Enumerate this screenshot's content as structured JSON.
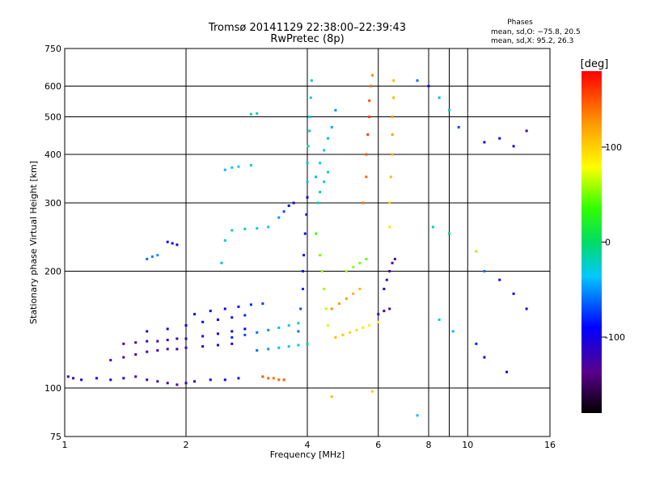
{
  "chart_data": {
    "type": "scatter",
    "title": "Tromsø 20141129 22:38:00–22:39:43",
    "subtitle": "RwPretec (8p)",
    "xlabel": "Frequency [MHz]",
    "ylabel": "Stationary phase Virtual Height [km]",
    "x_scale": "log",
    "y_scale": "log",
    "xlim": [
      1,
      16
    ],
    "ylim": [
      75,
      750
    ],
    "x_ticks": [
      1,
      2,
      4,
      6,
      8,
      10,
      16
    ],
    "y_ticks": [
      75,
      100,
      200,
      300,
      400,
      500,
      600,
      750
    ],
    "x_grid": [
      2,
      4,
      6,
      8,
      9,
      10
    ],
    "y_grid": [
      100,
      200,
      300,
      400,
      500,
      600
    ],
    "grid": true,
    "stats": {
      "heading": "Phases",
      "line_o": "mean, sd,O: −75.8, 20.5",
      "line_x": "mean, sd,X:  95.2, 26.3"
    },
    "colorbar": {
      "label": "[deg]",
      "min": -180,
      "max": 180,
      "ticks": [
        100,
        0,
        -100
      ]
    },
    "series": [
      {
        "points": [
          [
            1.02,
            107,
            -120
          ],
          [
            1.05,
            106,
            -115
          ],
          [
            1.1,
            105,
            -110
          ],
          [
            1.2,
            106,
            -100
          ],
          [
            1.3,
            105,
            -105
          ],
          [
            1.4,
            106,
            -110
          ],
          [
            1.5,
            107,
            -120
          ],
          [
            1.6,
            105,
            -125
          ],
          [
            1.7,
            104,
            -125
          ],
          [
            1.8,
            103,
            -120
          ],
          [
            1.9,
            102,
            -118
          ],
          [
            2.0,
            103,
            -115
          ],
          [
            2.1,
            104,
            -110
          ],
          [
            2.3,
            105,
            -100
          ],
          [
            2.5,
            105,
            -90
          ],
          [
            2.7,
            106,
            -85
          ],
          [
            1.3,
            118,
            -130
          ],
          [
            1.4,
            120,
            -135
          ],
          [
            1.5,
            122,
            -130
          ],
          [
            1.6,
            124,
            -128
          ],
          [
            1.7,
            125,
            -125
          ],
          [
            1.8,
            126,
            -130
          ],
          [
            1.9,
            126,
            -125
          ],
          [
            2.0,
            127,
            -120
          ],
          [
            2.2,
            128,
            -115
          ],
          [
            2.4,
            129,
            -110
          ],
          [
            2.6,
            130,
            -105
          ],
          [
            1.4,
            130,
            -130
          ],
          [
            1.5,
            131,
            -130
          ],
          [
            1.6,
            132,
            -125
          ],
          [
            1.7,
            132,
            -128
          ],
          [
            1.8,
            133,
            -122
          ],
          [
            1.9,
            134,
            -118
          ],
          [
            2.0,
            134,
            -112
          ],
          [
            2.2,
            136,
            -108
          ],
          [
            2.4,
            138,
            -104
          ],
          [
            2.6,
            140,
            -100
          ],
          [
            2.8,
            142,
            -95
          ],
          [
            1.6,
            140,
            -110
          ],
          [
            1.8,
            142,
            -105
          ],
          [
            2.0,
            145,
            -100
          ],
          [
            2.2,
            148,
            -95
          ],
          [
            2.4,
            150,
            -90
          ],
          [
            2.6,
            152,
            -85
          ],
          [
            2.8,
            154,
            -80
          ],
          [
            2.1,
            155,
            -100
          ],
          [
            2.3,
            158,
            -95
          ],
          [
            2.5,
            160,
            -90
          ],
          [
            2.7,
            162,
            -85
          ],
          [
            2.9,
            164,
            -80
          ],
          [
            3.1,
            165,
            -75
          ],
          [
            2.6,
            135,
            -80
          ],
          [
            2.8,
            137,
            -70
          ],
          [
            3.0,
            139,
            -60
          ],
          [
            3.2,
            141,
            -50
          ],
          [
            3.4,
            143,
            -40
          ],
          [
            3.6,
            145,
            -30
          ],
          [
            3.8,
            147,
            -20
          ],
          [
            3.0,
            125,
            -60
          ],
          [
            3.2,
            126,
            -50
          ],
          [
            3.4,
            127,
            -40
          ],
          [
            3.6,
            128,
            -30
          ],
          [
            3.8,
            129,
            -20
          ],
          [
            4.0,
            130,
            -10
          ],
          [
            1.6,
            215,
            -60
          ],
          [
            1.65,
            218,
            -55
          ],
          [
            1.7,
            220,
            -50
          ],
          [
            1.8,
            238,
            -90
          ],
          [
            1.85,
            236,
            -95
          ],
          [
            1.9,
            234,
            -100
          ],
          [
            2.45,
            210,
            -40
          ],
          [
            2.5,
            240,
            -30
          ],
          [
            2.6,
            255,
            -20
          ],
          [
            2.8,
            257,
            -25
          ],
          [
            3.0,
            258,
            -30
          ],
          [
            3.2,
            260,
            -35
          ],
          [
            3.4,
            275,
            -50
          ],
          [
            3.5,
            285,
            -70
          ],
          [
            3.6,
            295,
            -90
          ],
          [
            3.7,
            300,
            -100
          ],
          [
            2.5,
            365,
            -40
          ],
          [
            2.6,
            370,
            -35
          ],
          [
            2.7,
            372,
            -30
          ],
          [
            2.9,
            375,
            -25
          ],
          [
            2.9,
            508,
            -10
          ],
          [
            3.0,
            510,
            -15
          ],
          [
            3.8,
            140,
            -60
          ],
          [
            3.85,
            160,
            -70
          ],
          [
            3.9,
            180,
            -80
          ],
          [
            3.9,
            200,
            -85
          ],
          [
            3.92,
            220,
            -90
          ],
          [
            3.95,
            250,
            -95
          ],
          [
            3.98,
            280,
            -100
          ],
          [
            4.0,
            310,
            -100
          ],
          [
            4.0,
            340,
            -30
          ],
          [
            4.0,
            380,
            -20
          ],
          [
            4.02,
            420,
            -10
          ],
          [
            4.05,
            460,
            -20
          ],
          [
            4.05,
            500,
            -30
          ],
          [
            4.08,
            560,
            -25
          ],
          [
            4.1,
            620,
            -20
          ],
          [
            4.2,
            350,
            -40
          ],
          [
            4.3,
            380,
            -30
          ],
          [
            4.4,
            410,
            -35
          ],
          [
            4.5,
            440,
            -40
          ],
          [
            4.6,
            470,
            -45
          ],
          [
            4.7,
            520,
            -50
          ],
          [
            4.25,
            300,
            -20
          ],
          [
            4.3,
            320,
            -10
          ],
          [
            4.4,
            340,
            -25
          ],
          [
            4.5,
            360,
            -35
          ],
          [
            4.2,
            250,
            40
          ],
          [
            4.3,
            220,
            50
          ],
          [
            4.35,
            200,
            55
          ],
          [
            4.4,
            180,
            60
          ],
          [
            4.45,
            160,
            65
          ],
          [
            4.5,
            145,
            70
          ],
          [
            4.7,
            135,
            110
          ],
          [
            4.9,
            137,
            105
          ],
          [
            5.1,
            139,
            100
          ],
          [
            5.3,
            141,
            95
          ],
          [
            5.5,
            143,
            90
          ],
          [
            5.7,
            145,
            85
          ],
          [
            6.0,
            148,
            80
          ],
          [
            4.6,
            160,
            130
          ],
          [
            4.8,
            165,
            125
          ],
          [
            5.0,
            170,
            120
          ],
          [
            5.2,
            175,
            115
          ],
          [
            5.4,
            180,
            110
          ],
          [
            5.0,
            200,
            60
          ],
          [
            5.2,
            205,
            55
          ],
          [
            5.4,
            210,
            50
          ],
          [
            5.6,
            215,
            45
          ],
          [
            5.5,
            300,
            140
          ],
          [
            5.6,
            350,
            145
          ],
          [
            5.6,
            400,
            150
          ],
          [
            5.65,
            450,
            155
          ],
          [
            5.7,
            500,
            160
          ],
          [
            5.7,
            550,
            150
          ],
          [
            5.75,
            600,
            140
          ],
          [
            5.8,
            640,
            130
          ],
          [
            6.4,
            260,
            90
          ],
          [
            6.4,
            300,
            100
          ],
          [
            6.45,
            350,
            110
          ],
          [
            6.5,
            400,
            115
          ],
          [
            6.5,
            450,
            120
          ],
          [
            6.5,
            500,
            125
          ],
          [
            6.55,
            560,
            115
          ],
          [
            6.55,
            620,
            110
          ],
          [
            6.2,
            180,
            -110
          ],
          [
            6.3,
            190,
            -120
          ],
          [
            6.4,
            200,
            -125
          ],
          [
            6.5,
            210,
            -130
          ],
          [
            6.6,
            215,
            -130
          ],
          [
            6.0,
            155,
            -120
          ],
          [
            6.2,
            158,
            -125
          ],
          [
            6.4,
            160,
            -128
          ],
          [
            3.1,
            107,
            150
          ],
          [
            3.2,
            106,
            145
          ],
          [
            3.3,
            106,
            140
          ],
          [
            3.4,
            105,
            145
          ],
          [
            3.5,
            105,
            150
          ],
          [
            7.5,
            620,
            -60
          ],
          [
            8.0,
            600,
            -100
          ],
          [
            8.5,
            560,
            -40
          ],
          [
            9.0,
            520,
            -20
          ],
          [
            9.5,
            470,
            -70
          ],
          [
            11,
            430,
            -100
          ],
          [
            12,
            440,
            -90
          ],
          [
            13,
            420,
            -110
          ],
          [
            14,
            460,
            -120
          ],
          [
            8.2,
            260,
            -20
          ],
          [
            9.0,
            250,
            -10
          ],
          [
            10.5,
            225,
            60
          ],
          [
            11,
            200,
            -60
          ],
          [
            12,
            190,
            -110
          ],
          [
            13,
            175,
            -105
          ],
          [
            14,
            160,
            -100
          ],
          [
            8.5,
            150,
            -30
          ],
          [
            9.2,
            140,
            -40
          ],
          [
            10.5,
            130,
            -80
          ],
          [
            11,
            120,
            -90
          ],
          [
            12.5,
            110,
            -100
          ],
          [
            7.5,
            85,
            -40
          ],
          [
            4.6,
            95,
            110
          ],
          [
            5.8,
            98,
            100
          ]
        ]
      }
    ]
  }
}
